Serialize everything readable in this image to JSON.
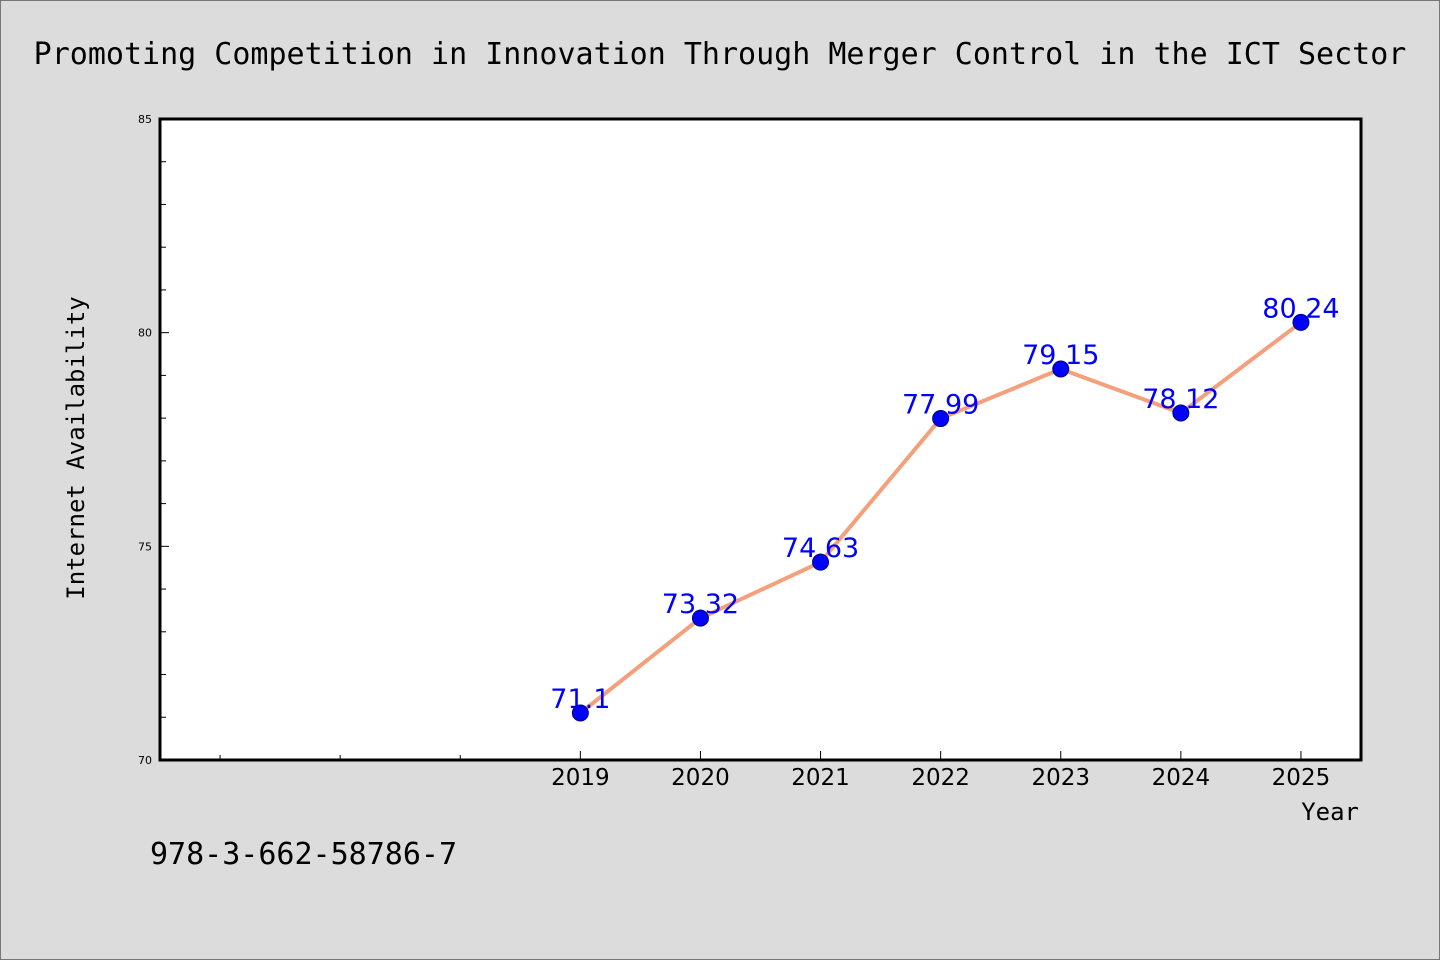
{
  "footer_text": "978-3-662-58786-7",
  "chart_data": {
    "type": "line",
    "title": "Promoting Competition in Innovation Through Merger Control in the ICT Sector",
    "xlabel": "Year",
    "ylabel": "Internet Availability",
    "x": [
      2019,
      2020,
      2021,
      2022,
      2023,
      2024,
      2025
    ],
    "series": [
      {
        "values": [
          71.1,
          73.32,
          74.63,
          77.99,
          79.15,
          78.12,
          80.24
        ]
      }
    ],
    "data_labels": [
      "71.1",
      "73.32",
      "74.63",
      "77.99",
      "79.15",
      "78.12",
      "80.24"
    ],
    "xlim": [
      2015.5,
      2025.5
    ],
    "ylim": [
      70,
      85
    ],
    "xticks": [
      2019,
      2020,
      2021,
      2022,
      2023,
      2024,
      2025
    ],
    "x_unlabeled_ticks": [
      2016,
      2017,
      2018
    ],
    "yticks": [
      70,
      75,
      80,
      85
    ],
    "y_minor_step": 1,
    "grid": false,
    "legend": "none",
    "colors": {
      "background": "#dcdcdc",
      "plot_background": "#ffffff",
      "line": "#f4a07c",
      "marker": "#0000ff",
      "marker_edge": "#00007a",
      "data_label": "#0000ff",
      "axis": "#000000"
    }
  }
}
